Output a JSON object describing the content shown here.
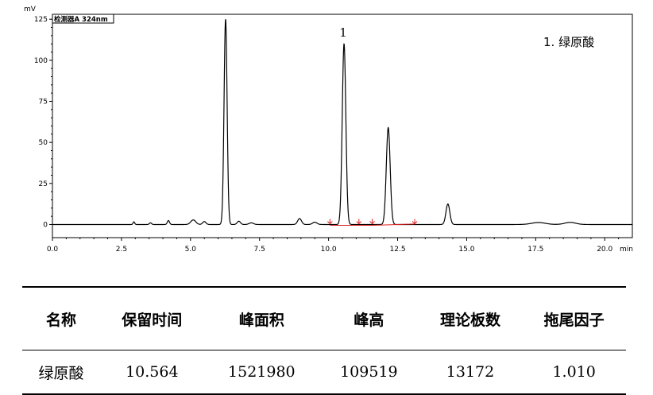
{
  "chart_data": {
    "type": "line",
    "ylabel": "mV",
    "xlabel": "min",
    "detector_label": "检测器A 324nm",
    "xlim": [
      0,
      21
    ],
    "ylim": [
      -8,
      128
    ],
    "x_ticks": [
      {
        "value": 0.0,
        "label": "0.0"
      },
      {
        "value": 2.5,
        "label": "2.5"
      },
      {
        "value": 5.0,
        "label": "5.0"
      },
      {
        "value": 7.5,
        "label": "7.5"
      },
      {
        "value": 10.0,
        "label": "10.0"
      },
      {
        "value": 12.5,
        "label": "12.5"
      },
      {
        "value": 15.0,
        "label": "15.0"
      },
      {
        "value": 17.5,
        "label": "17.5"
      },
      {
        "value": 20.0,
        "label": "20.0"
      }
    ],
    "y_ticks": [
      {
        "value": 0,
        "label": "0"
      },
      {
        "value": 25,
        "label": "25"
      },
      {
        "value": 50,
        "label": "50"
      },
      {
        "value": 75,
        "label": "75"
      },
      {
        "value": 100,
        "label": "100"
      },
      {
        "value": 125,
        "label": "125"
      }
    ],
    "peaks": [
      {
        "rt": 2.95,
        "height": 1.6,
        "width": 0.03
      },
      {
        "rt": 3.55,
        "height": 1.0,
        "width": 0.04
      },
      {
        "rt": 4.2,
        "height": 2.4,
        "width": 0.04
      },
      {
        "rt": 5.1,
        "height": 2.8,
        "width": 0.09
      },
      {
        "rt": 5.5,
        "height": 1.8,
        "width": 0.06
      },
      {
        "rt": 6.27,
        "height": 125,
        "width": 0.055
      },
      {
        "rt": 6.75,
        "height": 2.0,
        "width": 0.06
      },
      {
        "rt": 7.2,
        "height": 1.0,
        "width": 0.08
      },
      {
        "rt": 8.95,
        "height": 3.6,
        "width": 0.07
      },
      {
        "rt": 9.5,
        "height": 1.4,
        "width": 0.08
      },
      {
        "rt": 10.56,
        "height": 110,
        "width": 0.065
      },
      {
        "rt": 12.16,
        "height": 59,
        "width": 0.07
      },
      {
        "rt": 14.32,
        "height": 12.5,
        "width": 0.07
      },
      {
        "rt": 17.6,
        "height": 1.2,
        "width": 0.25
      },
      {
        "rt": 18.75,
        "height": 1.3,
        "width": 0.2
      }
    ],
    "integration_baselines": [
      {
        "x1": 10.05,
        "x2": 11.58,
        "y1": -0.5,
        "y2": -0.5
      },
      {
        "x1": 11.58,
        "x2": 13.12,
        "y1": -0.5,
        "y2": 0.3
      }
    ],
    "integration_markers": [
      10.05,
      11.1,
      11.58,
      13.12
    ],
    "annotations": [
      {
        "text": "1",
        "x": 10.56
      }
    ],
    "legend": "1. 绿原酸"
  },
  "table": {
    "headers": [
      "名称",
      "保留时间",
      "峰面积",
      "峰高",
      "理论板数",
      "拖尾因子"
    ],
    "rows": [
      [
        "绿原酸",
        "10.564",
        "1521980",
        "109519",
        "13172",
        "1.010"
      ]
    ]
  }
}
